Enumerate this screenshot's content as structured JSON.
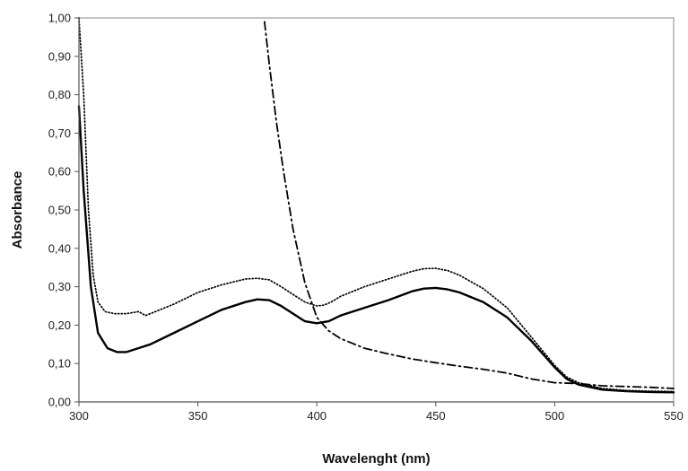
{
  "chart_data": {
    "type": "line",
    "title": "",
    "xlabel": "Wavelenght (nm)",
    "ylabel": "Absorbance",
    "xlim": [
      300,
      550
    ],
    "ylim": [
      0,
      1
    ],
    "x_ticks": [
      300,
      350,
      400,
      450,
      500,
      550
    ],
    "x_tick_labels": [
      "300",
      "350",
      "400",
      "450",
      "500",
      "550"
    ],
    "y_ticks": [
      0,
      0.1,
      0.2,
      0.3,
      0.4,
      0.5,
      0.6,
      0.7,
      0.8,
      0.9,
      1.0
    ],
    "y_tick_labels": [
      "0,00",
      "0,10",
      "0,20",
      "0,30",
      "0,40",
      "0,50",
      "0,60",
      "0,70",
      "0,80",
      "0,90",
      "1,00"
    ],
    "grid": false,
    "legend": "none",
    "series": [
      {
        "style": "solid",
        "color": "#000000",
        "x": [
          300,
          302,
          305,
          308,
          312,
          316,
          320,
          325,
          330,
          340,
          350,
          360,
          370,
          375,
          380,
          385,
          390,
          395,
          400,
          405,
          410,
          420,
          430,
          440,
          445,
          450,
          455,
          460,
          470,
          480,
          490,
          500,
          505,
          510,
          520,
          530,
          540,
          550
        ],
        "y": [
          0.77,
          0.55,
          0.3,
          0.18,
          0.14,
          0.13,
          0.13,
          0.14,
          0.15,
          0.18,
          0.21,
          0.24,
          0.26,
          0.267,
          0.265,
          0.25,
          0.23,
          0.21,
          0.205,
          0.21,
          0.225,
          0.245,
          0.265,
          0.288,
          0.295,
          0.297,
          0.293,
          0.285,
          0.26,
          0.22,
          0.16,
          0.09,
          0.06,
          0.045,
          0.032,
          0.028,
          0.026,
          0.025
        ]
      },
      {
        "style": "dotted",
        "color": "#000000",
        "x": [
          300,
          302,
          304,
          306,
          308,
          311,
          315,
          320,
          325,
          326,
          328,
          330,
          340,
          350,
          360,
          370,
          375,
          380,
          385,
          390,
          395,
          400,
          403,
          406,
          410,
          420,
          430,
          440,
          445,
          450,
          455,
          460,
          470,
          480,
          490,
          500,
          505,
          510,
          520,
          530,
          540,
          550
        ],
        "y": [
          1.0,
          0.8,
          0.5,
          0.33,
          0.26,
          0.235,
          0.23,
          0.23,
          0.235,
          0.232,
          0.225,
          0.23,
          0.255,
          0.285,
          0.305,
          0.32,
          0.322,
          0.318,
          0.3,
          0.28,
          0.26,
          0.25,
          0.252,
          0.26,
          0.275,
          0.3,
          0.32,
          0.34,
          0.347,
          0.348,
          0.342,
          0.33,
          0.295,
          0.245,
          0.17,
          0.095,
          0.065,
          0.05,
          0.035,
          0.03,
          0.028,
          0.027
        ]
      },
      {
        "style": "dash-dot",
        "color": "#000000",
        "x": [
          378,
          380,
          383,
          386,
          390,
          395,
          400,
          405,
          410,
          420,
          430,
          440,
          450,
          460,
          470,
          480,
          490,
          500,
          510,
          520,
          530,
          540,
          550
        ],
        "y": [
          0.99,
          0.88,
          0.73,
          0.6,
          0.45,
          0.31,
          0.22,
          0.185,
          0.165,
          0.14,
          0.125,
          0.112,
          0.102,
          0.093,
          0.085,
          0.075,
          0.06,
          0.05,
          0.048,
          0.042,
          0.04,
          0.038,
          0.035
        ]
      }
    ]
  }
}
